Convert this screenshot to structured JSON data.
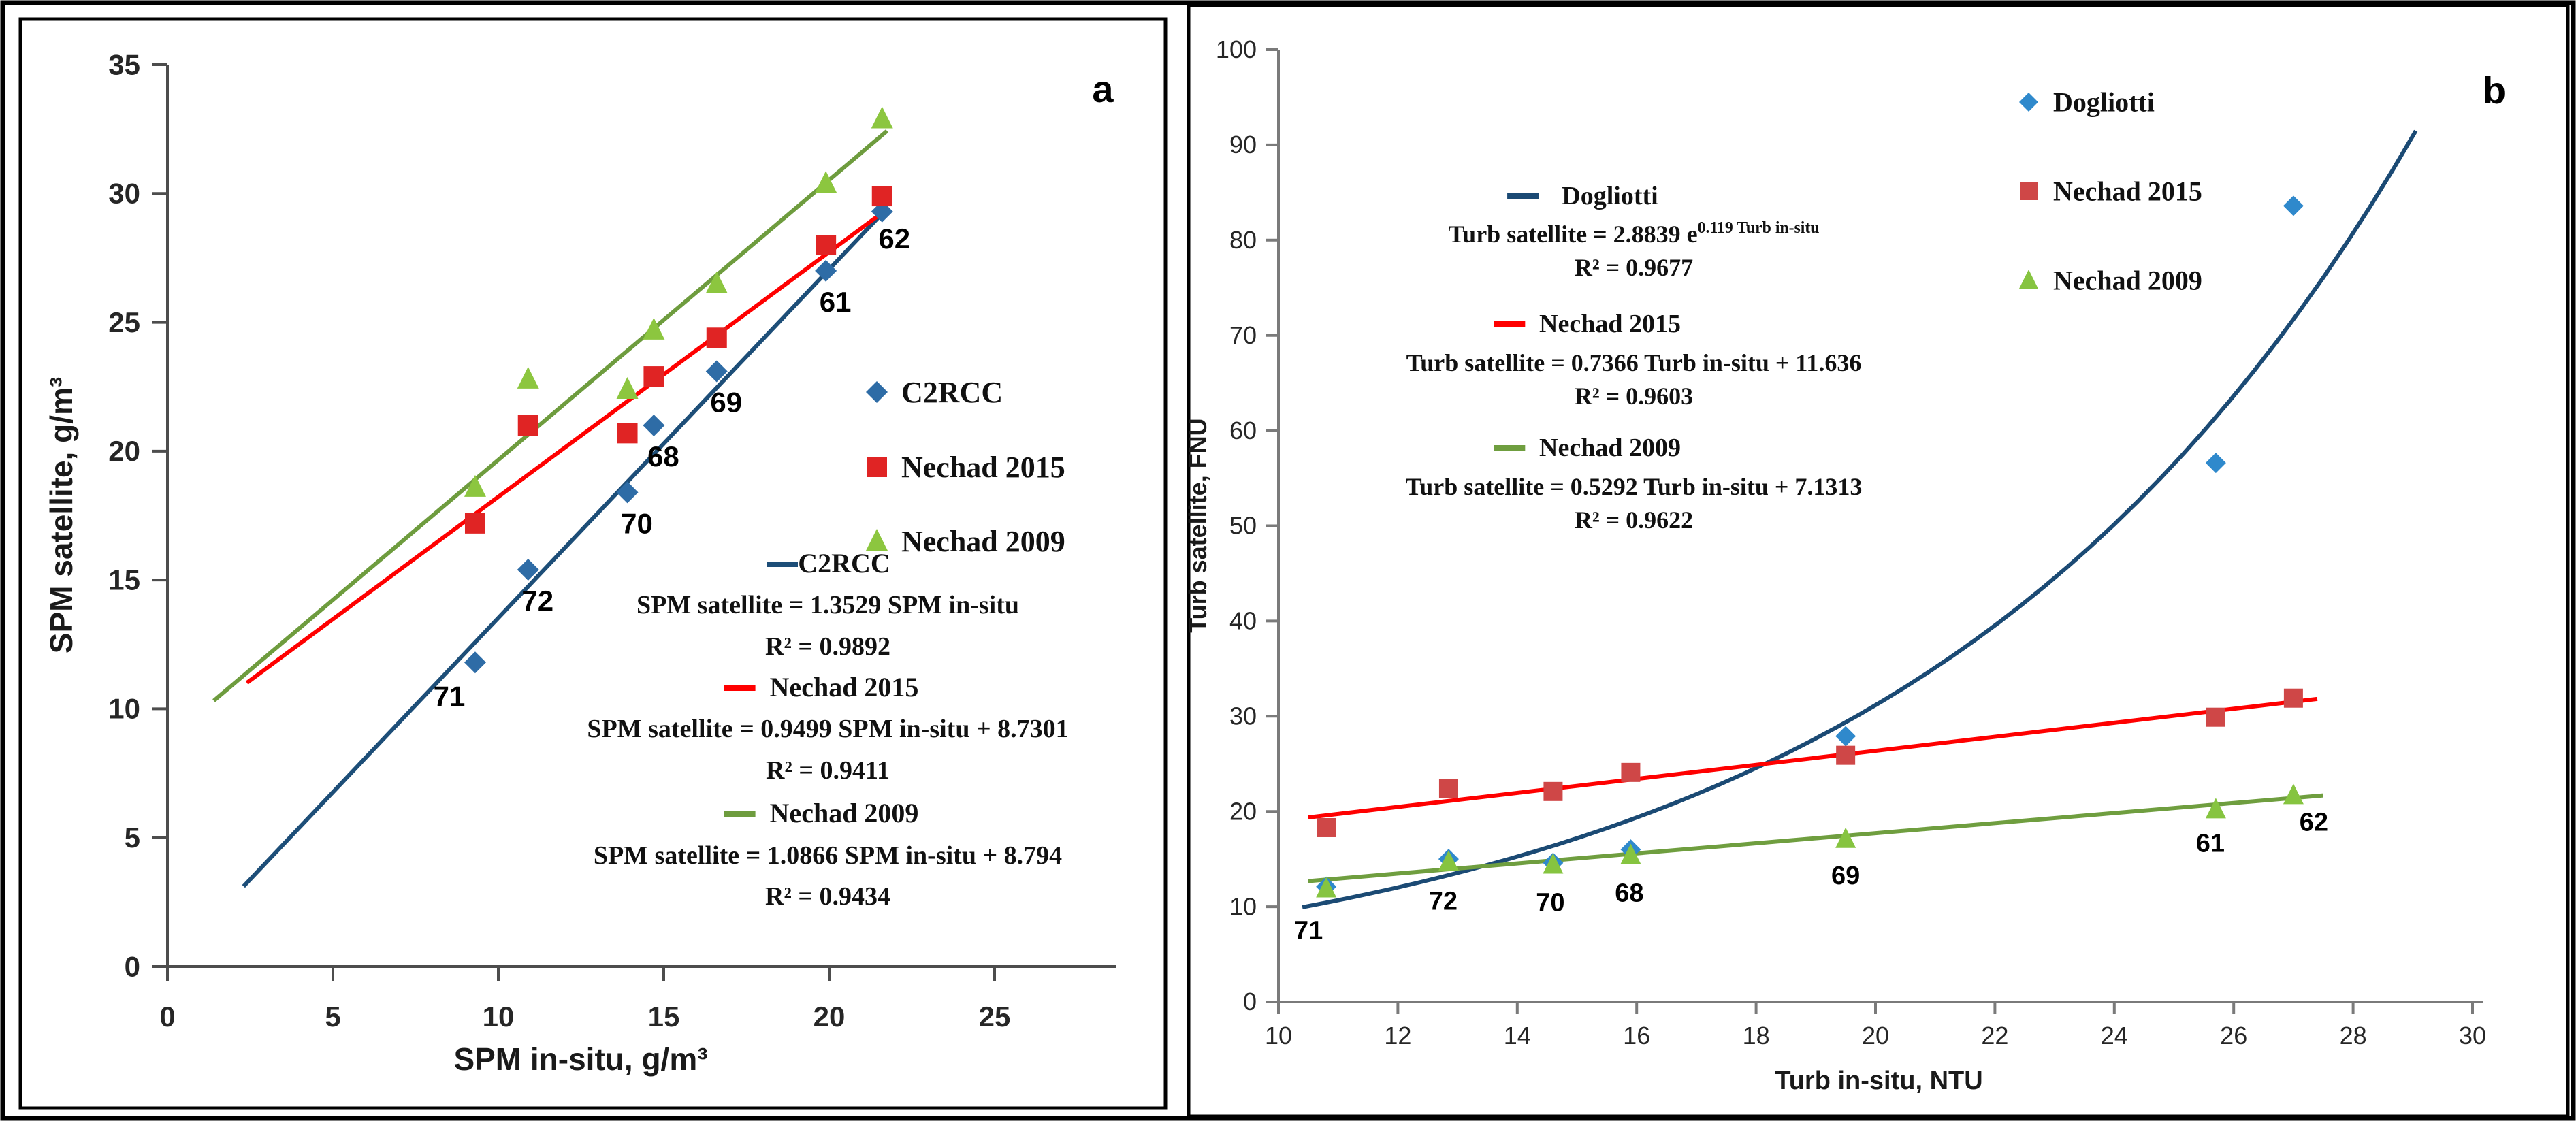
{
  "figure": {
    "background": "#ffffff",
    "border_color": "#000000",
    "panel_letters": [
      "a",
      "b"
    ]
  },
  "chart_data": [
    {
      "panel": "a",
      "type": "scatter",
      "title": "",
      "xlabel": "SPM in-situ, g/m³",
      "ylabel": "SPM satellite, g/m³",
      "xlim": [
        0,
        28.5
      ],
      "ylim": [
        0,
        35
      ],
      "xticks": [
        0,
        5,
        10,
        15,
        20,
        25
      ],
      "yticks": [
        0,
        5,
        10,
        15,
        20,
        25,
        30,
        35
      ],
      "grid": false,
      "legend_position": "right-middle",
      "legend": [
        "C2RCC",
        "Nechad 2015",
        "Nechad 2009"
      ],
      "stations": [
        "71",
        "72",
        "70",
        "68",
        "69",
        "61",
        "62"
      ],
      "x": [
        9.3,
        10.9,
        13.9,
        14.7,
        16.6,
        19.9,
        21.6
      ],
      "series": [
        {
          "name": "C2RCC",
          "marker": "diamond",
          "marker_color": "#2e6ca6",
          "line_color": "#1d4e78",
          "values": [
            11.8,
            15.4,
            18.4,
            21.0,
            23.1,
            27.0,
            29.3
          ],
          "trend": {
            "kind": "linear",
            "slope": 1.3529,
            "intercept": 0,
            "x_start": 2.3,
            "x_end": 21.75
          },
          "equation": "SPM satellite = 1.3529 SPM in-situ",
          "r_squared": "R² = 0.9892"
        },
        {
          "name": "Nechad 2015",
          "marker": "square",
          "marker_color": "#e02424",
          "line_color": "#ff0000",
          "values": [
            17.2,
            21.0,
            20.7,
            22.9,
            24.4,
            28.0,
            29.9
          ],
          "trend": {
            "kind": "linear",
            "slope": 0.9499,
            "intercept": 8.7301,
            "x_start": 2.4,
            "x_end": 21.75
          },
          "equation": "SPM satellite = 0.9499 SPM in-situ + 8.7301",
          "r_squared": "R² = 0.9411"
        },
        {
          "name": "Nechad 2009",
          "marker": "triangle",
          "marker_color": "#8cc63f",
          "line_color": "#6e9c3e",
          "values": [
            18.6,
            22.8,
            22.4,
            24.7,
            26.5,
            30.4,
            32.9
          ],
          "trend": {
            "kind": "linear",
            "slope": 1.0866,
            "intercept": 8.794,
            "x_start": 1.4,
            "x_end": 21.75
          },
          "equation": "SPM satellite = 1.0866 SPM in-situ + 8.794",
          "r_squared": "R² = 0.9434"
        }
      ]
    },
    {
      "panel": "b",
      "type": "scatter",
      "title": "",
      "xlabel": "Turb in-situ, NTU",
      "ylabel": "Turb satellite, FNU",
      "xlim": [
        10,
        30
      ],
      "ylim": [
        0,
        100
      ],
      "xticks": [
        10,
        12,
        14,
        16,
        18,
        20,
        22,
        24,
        26,
        28,
        30
      ],
      "yticks": [
        0,
        10,
        20,
        30,
        40,
        50,
        60,
        70,
        80,
        90,
        100
      ],
      "grid": false,
      "legend_position": "top-right",
      "legend": [
        "Dogliotti",
        "Nechad 2015",
        "Nechad 2009"
      ],
      "stations": [
        "71",
        "72",
        "70",
        "68",
        "69",
        "61",
        "62"
      ],
      "x": [
        10.8,
        12.85,
        14.6,
        15.9,
        19.5,
        25.7,
        27.0
      ],
      "series": [
        {
          "name": "Dogliotti",
          "marker": "diamond",
          "marker_color": "#2f89cc",
          "line_color": "#1b4a74",
          "values": [
            12.1,
            15.0,
            14.6,
            16.0,
            27.9,
            56.6,
            83.6
          ],
          "trend": {
            "kind": "exp",
            "a": 2.8839,
            "b": 0.119,
            "x_start": 10.4,
            "x_end": 29.05
          },
          "equation_base": "Turb satellite  = 2.8839 e",
          "equation_sup": "0.119 Turb in-situ",
          "r_squared": "R² = 0.9677"
        },
        {
          "name": "Nechad 2015",
          "marker": "square",
          "marker_color": "#cf4747",
          "line_color": "#ff0000",
          "values": [
            18.3,
            22.4,
            22.1,
            24.1,
            25.9,
            29.9,
            31.9
          ],
          "trend": {
            "kind": "linear",
            "slope": 0.7366,
            "intercept": 11.636,
            "x_start": 10.5,
            "x_end": 27.4
          },
          "equation": "Turb satellite = 0.7366  Turb in-situ + 11.636",
          "r_squared": "R² = 0.9603"
        },
        {
          "name": "Nechad 2009",
          "marker": "triangle",
          "marker_color": "#86c440",
          "line_color": "#6f9e3f",
          "values": [
            11.9,
            14.7,
            14.4,
            15.4,
            17.1,
            20.2,
            21.7
          ],
          "trend": {
            "kind": "linear",
            "slope": 0.5292,
            "intercept": 7.1313,
            "x_start": 10.5,
            "x_end": 27.5
          },
          "equation": "Turb satellite = 0.5292 Turb in-situ + 7.1313",
          "r_squared": "R² = 0.9622"
        }
      ]
    }
  ]
}
